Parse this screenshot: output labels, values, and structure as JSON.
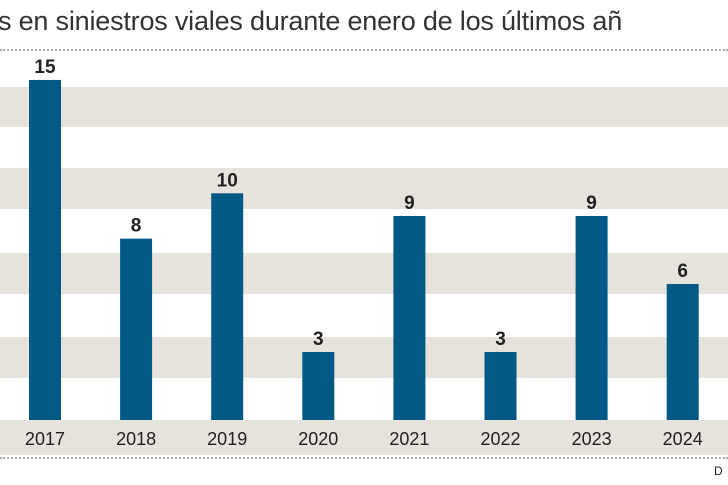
{
  "title": "s en siniestros viales durante enero de los últimos añ",
  "source_fragment": "D",
  "colors": {
    "bar": "#035985",
    "band": "#e6e3dc",
    "text": "#222222"
  },
  "chart_data": {
    "type": "bar",
    "title": "s en siniestros viales durante enero de los últimos añ",
    "categories": [
      "2017",
      "2018",
      "2019",
      "2020",
      "2021",
      "2022",
      "2023",
      "2024"
    ],
    "values": [
      15,
      8,
      10,
      3,
      9,
      3,
      9,
      6
    ],
    "data_labels": true,
    "xlabel": "",
    "ylabel": "",
    "ylim": [
      0,
      15
    ],
    "grid": "alternating horizontal bands",
    "legend": "none"
  }
}
